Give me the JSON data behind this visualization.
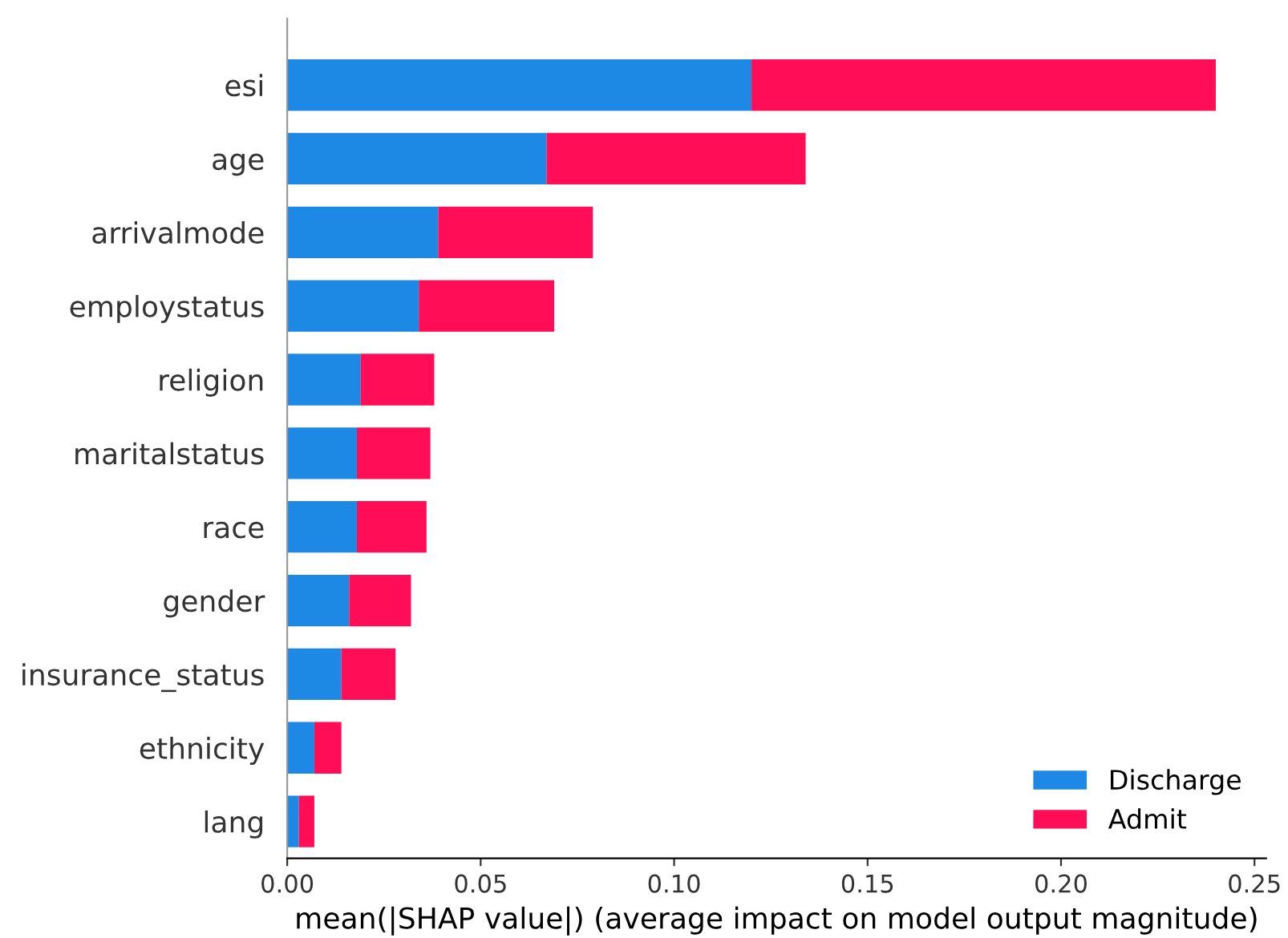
{
  "chart_data": {
    "type": "bar",
    "orientation": "horizontal",
    "stacked": true,
    "categories": [
      "esi",
      "age",
      "arrivalmode",
      "employstatus",
      "religion",
      "maritalstatus",
      "race",
      "gender",
      "insurance_status",
      "ethnicity",
      "lang"
    ],
    "series": [
      {
        "name": "Discharge",
        "color": "#1e88e5",
        "values": [
          0.12,
          0.067,
          0.039,
          0.034,
          0.019,
          0.018,
          0.018,
          0.016,
          0.014,
          0.007,
          0.003
        ]
      },
      {
        "name": "Admit",
        "color": "#ff0d57",
        "values": [
          0.12,
          0.067,
          0.04,
          0.035,
          0.019,
          0.019,
          0.018,
          0.016,
          0.014,
          0.007,
          0.004
        ]
      }
    ],
    "xlabel": "mean(|SHAP value|) (average impact on model output magnitude)",
    "xlim": [
      0,
      0.253
    ],
    "xticks": [
      {
        "value": 0,
        "label": "0.00"
      },
      {
        "value": 0.05,
        "label": "0.05"
      },
      {
        "value": 0.1,
        "label": "0.10"
      },
      {
        "value": 0.15,
        "label": "0.15"
      },
      {
        "value": 0.2,
        "label": "0.20"
      },
      {
        "value": 0.25,
        "label": "0.25"
      }
    ],
    "legend": "lower right",
    "grid": false
  }
}
